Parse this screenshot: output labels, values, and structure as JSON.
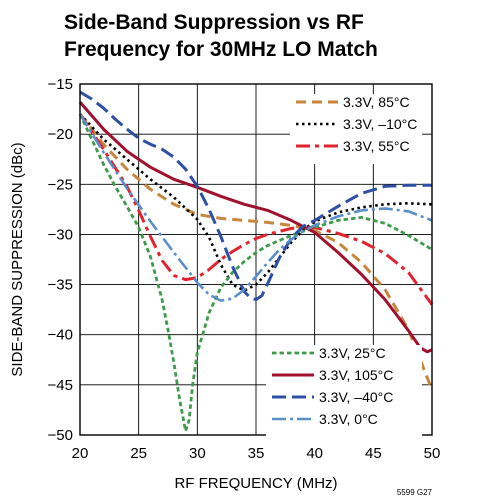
{
  "chart_data": {
    "type": "line",
    "title": [
      "Side-Band Suppression vs RF",
      "Frequency for 30MHz LO Match"
    ],
    "xlabel": "RF FREQUENCY (MHz)",
    "ylabel": "SIDE-BAND SUPPRESSION (dBc)",
    "xlim": [
      20,
      50
    ],
    "ylim": [
      -50,
      -15
    ],
    "xticks": [
      20,
      25,
      30,
      35,
      40,
      45,
      50
    ],
    "yticks": [
      -15,
      -20,
      -25,
      -30,
      -35,
      -40,
      -45,
      -50
    ],
    "grid": true,
    "figure_id": "5599 G27",
    "legends": [
      {
        "position": "top-right",
        "entries": [
          0,
          1,
          2
        ]
      },
      {
        "position": "bottom-right",
        "entries": [
          3,
          4,
          5,
          6
        ]
      }
    ],
    "series": [
      {
        "name": "3.3V, 85°C",
        "color": "#c8863c",
        "dash": "10,6",
        "width": 3,
        "x": [
          20,
          22,
          24,
          26,
          28,
          30,
          32,
          34,
          36,
          38,
          40,
          42,
          44,
          46,
          48,
          50
        ],
        "y": [
          -18,
          -21,
          -23.5,
          -25.5,
          -27,
          -28,
          -28.4,
          -28.6,
          -28.8,
          -29.1,
          -29.6,
          -30.8,
          -32.8,
          -35.5,
          -39.5,
          -45.5
        ]
      },
      {
        "name": "3.3V, –10°C",
        "color": "#000000",
        "dash": "2.5,3.5",
        "width": 2.6,
        "x": [
          20,
          22,
          24,
          26,
          28,
          30,
          31,
          32,
          33,
          34,
          35,
          36,
          37,
          38,
          39,
          40,
          42,
          44,
          46,
          48,
          50
        ],
        "y": [
          -18,
          -20.5,
          -22.5,
          -24.5,
          -26.3,
          -28.5,
          -30.3,
          -33,
          -35,
          -35.6,
          -35,
          -33.8,
          -32.3,
          -30.8,
          -29.6,
          -28.7,
          -27.8,
          -27.3,
          -27,
          -26.9,
          -27
        ]
      },
      {
        "name": "3.3V, 55°C",
        "color": "#e2232e",
        "dash": "14,5,4,5",
        "width": 3,
        "x": [
          20,
          22,
          24,
          25,
          26,
          27,
          28,
          29,
          30,
          31,
          32,
          33,
          34,
          35,
          36,
          38,
          40,
          42,
          44,
          46,
          48,
          50
        ],
        "y": [
          -18,
          -21.5,
          -25.2,
          -27.6,
          -30.2,
          -32.6,
          -34.1,
          -34.5,
          -34.3,
          -33.5,
          -32.5,
          -31.7,
          -31,
          -30.4,
          -30,
          -29.4,
          -29.3,
          -29.9,
          -30.7,
          -31.9,
          -33.8,
          -37
        ]
      },
      {
        "name": "3.3V, 25°C",
        "color": "#3f9a4a",
        "dash": "4.5,3",
        "width": 2.8,
        "x": [
          20,
          21,
          22,
          23,
          24,
          25,
          26,
          27,
          27.5,
          28,
          28.5,
          29,
          29.3,
          29.6,
          30,
          31,
          32,
          33,
          34,
          35,
          36,
          38,
          40,
          42,
          44,
          46,
          48,
          50
        ],
        "y": [
          -18,
          -20.5,
          -23,
          -25.2,
          -27.2,
          -29.3,
          -32.2,
          -36.5,
          -39.5,
          -42.8,
          -46.5,
          -49.6,
          -48.5,
          -45,
          -41.8,
          -37.8,
          -35.3,
          -33.8,
          -32.7,
          -31.8,
          -31.1,
          -30.1,
          -29.3,
          -28.6,
          -28.3,
          -28.9,
          -30.1,
          -31.5
        ]
      },
      {
        "name": "3.3V, 105°C",
        "color": "#a0112e",
        "dash": "",
        "width": 3,
        "x": [
          20,
          22,
          24,
          26,
          28,
          30,
          32,
          34,
          36,
          38,
          40,
          42,
          44,
          46,
          48,
          49,
          49.6,
          50
        ],
        "y": [
          -16.8,
          -19.5,
          -21.7,
          -23.3,
          -24.5,
          -25.3,
          -26.2,
          -27,
          -27.6,
          -28.6,
          -29.8,
          -31.8,
          -34,
          -36.5,
          -39.6,
          -41.3,
          -41.7,
          -41.5
        ]
      },
      {
        "name": "3.3V, –40°C",
        "color": "#2d4fa6",
        "dash": "14,6",
        "width": 3,
        "x": [
          20,
          21,
          22,
          23,
          24,
          25,
          26,
          27,
          28,
          29,
          30,
          31,
          32,
          33,
          34,
          34.5,
          35,
          35.5,
          36,
          37,
          38,
          39,
          40,
          42,
          44,
          46,
          48,
          50
        ],
        "y": [
          -15.8,
          -16.5,
          -17.4,
          -18.5,
          -19.5,
          -20.4,
          -21,
          -21.5,
          -22.3,
          -23.5,
          -25.2,
          -27.5,
          -30.2,
          -33.2,
          -35.7,
          -36.3,
          -36.5,
          -36.1,
          -34.9,
          -32.3,
          -30.4,
          -29.2,
          -28.6,
          -27.2,
          -25.9,
          -25.2,
          -25.1,
          -25.1
        ]
      },
      {
        "name": "3.3V, 0°C",
        "color": "#5b8fc8",
        "dash": "14,4,3,4",
        "width": 2.6,
        "x": [
          20,
          22,
          24,
          26,
          28,
          29,
          30,
          31,
          32,
          33,
          34,
          35,
          36,
          37,
          38,
          39,
          40,
          42,
          44,
          46,
          48,
          50
        ],
        "y": [
          -18,
          -21.8,
          -25.4,
          -28.7,
          -31.8,
          -33.3,
          -34.8,
          -36,
          -36.6,
          -36.4,
          -35.5,
          -34.2,
          -32.8,
          -31.5,
          -30.5,
          -29.7,
          -29.1,
          -28.2,
          -27.6,
          -27.4,
          -27.7,
          -28.6
        ]
      }
    ]
  }
}
